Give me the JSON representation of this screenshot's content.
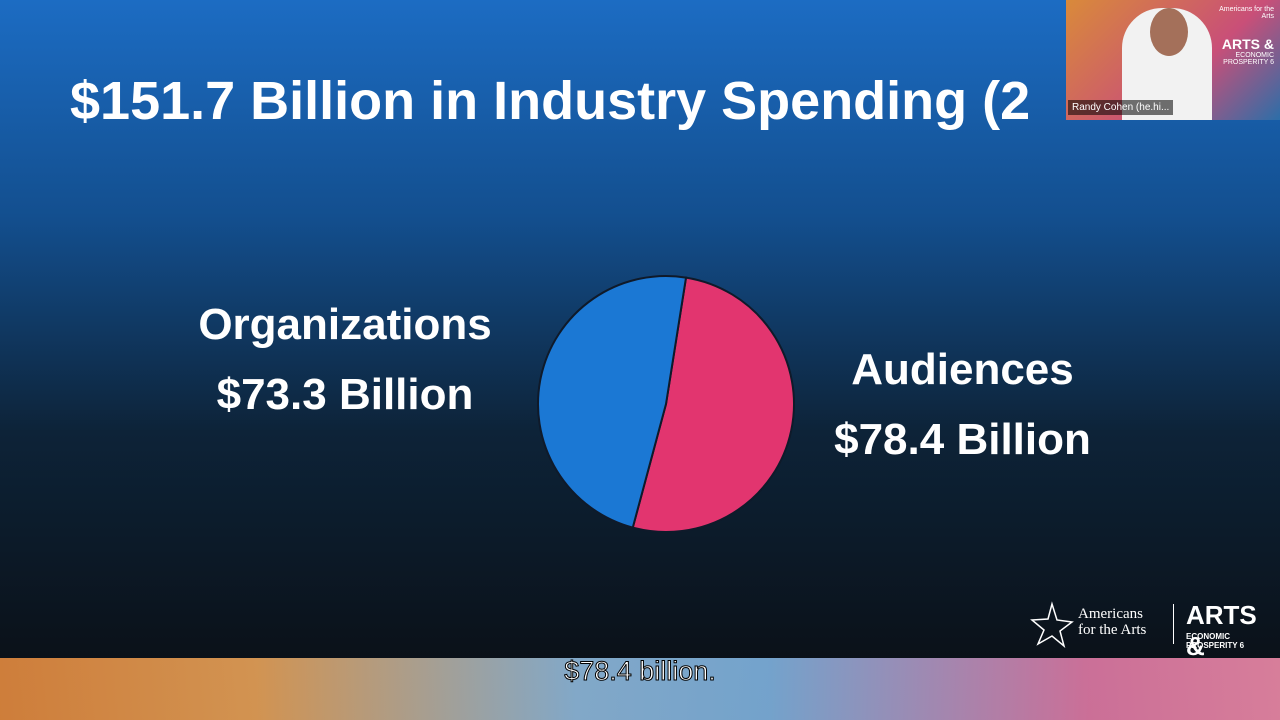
{
  "slide": {
    "title": "$151.7 Billion in Industry Spending (2"
  },
  "chart_data": {
    "type": "pie",
    "categories": [
      "Organizations",
      "Audiences"
    ],
    "values": [
      73.3,
      78.4
    ],
    "value_labels": [
      "$73.3 Billion",
      "$78.4 Billion"
    ],
    "colors": [
      "#1b78d4",
      "#e2356f"
    ]
  },
  "video": {
    "name": "Randy Cohen (he.hi...",
    "logo_org": "Americans for the Arts",
    "logo_title": "ARTS &",
    "logo_subtitle": "ECONOMIC PROSPERITY 6"
  },
  "footer_logo": {
    "org_line1": "Americans",
    "org_line2": "for the Arts",
    "title": "ARTS &",
    "subtitle": "ECONOMIC PROSPERITY 6"
  },
  "caption": "$78.4 billion."
}
